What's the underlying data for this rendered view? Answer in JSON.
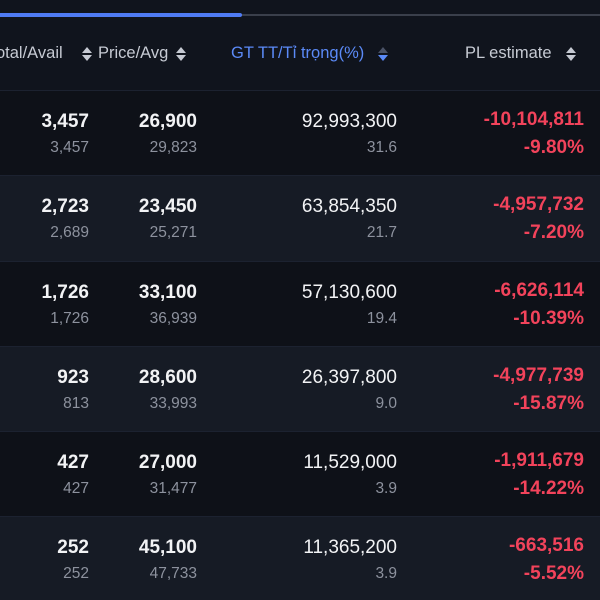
{
  "header": {
    "col_total_avail": "otal/Avail",
    "col_price_avg": "Price/Avg",
    "col_market_value_weight": "GT TT/Tỉ trọng(%)",
    "col_pl_estimate": "PL estimate"
  },
  "rows": [
    {
      "total": "3,457",
      "avail": "3,457",
      "price": "26,900",
      "avg": "29,823",
      "market_value": "92,993,300",
      "weight": "31.6",
      "pl": "-10,104,811",
      "pl_pct": "-9.80%"
    },
    {
      "total": "2,723",
      "avail": "2,689",
      "price": "23,450",
      "avg": "25,271",
      "market_value": "63,854,350",
      "weight": "21.7",
      "pl": "-4,957,732",
      "pl_pct": "-7.20%"
    },
    {
      "total": "1,726",
      "avail": "1,726",
      "price": "33,100",
      "avg": "36,939",
      "market_value": "57,130,600",
      "weight": "19.4",
      "pl": "-6,626,114",
      "pl_pct": "-10.39%"
    },
    {
      "total": "923",
      "avail": "813",
      "price": "28,600",
      "avg": "33,993",
      "market_value": "26,397,800",
      "weight": "9.0",
      "pl": "-4,977,739",
      "pl_pct": "-15.87%"
    },
    {
      "total": "427",
      "avail": "427",
      "price": "27,000",
      "avg": "31,477",
      "market_value": "11,529,000",
      "weight": "3.9",
      "pl": "-1,911,679",
      "pl_pct": "-14.22%"
    },
    {
      "total": "252",
      "avail": "252",
      "price": "45,100",
      "avg": "47,733",
      "market_value": "11,365,200",
      "weight": "3.9",
      "pl": "-663,516",
      "pl_pct": "-5.52%"
    }
  ],
  "colors": {
    "background": "#10141d",
    "active_header": "#5b8af7",
    "loss": "#f2435b"
  }
}
